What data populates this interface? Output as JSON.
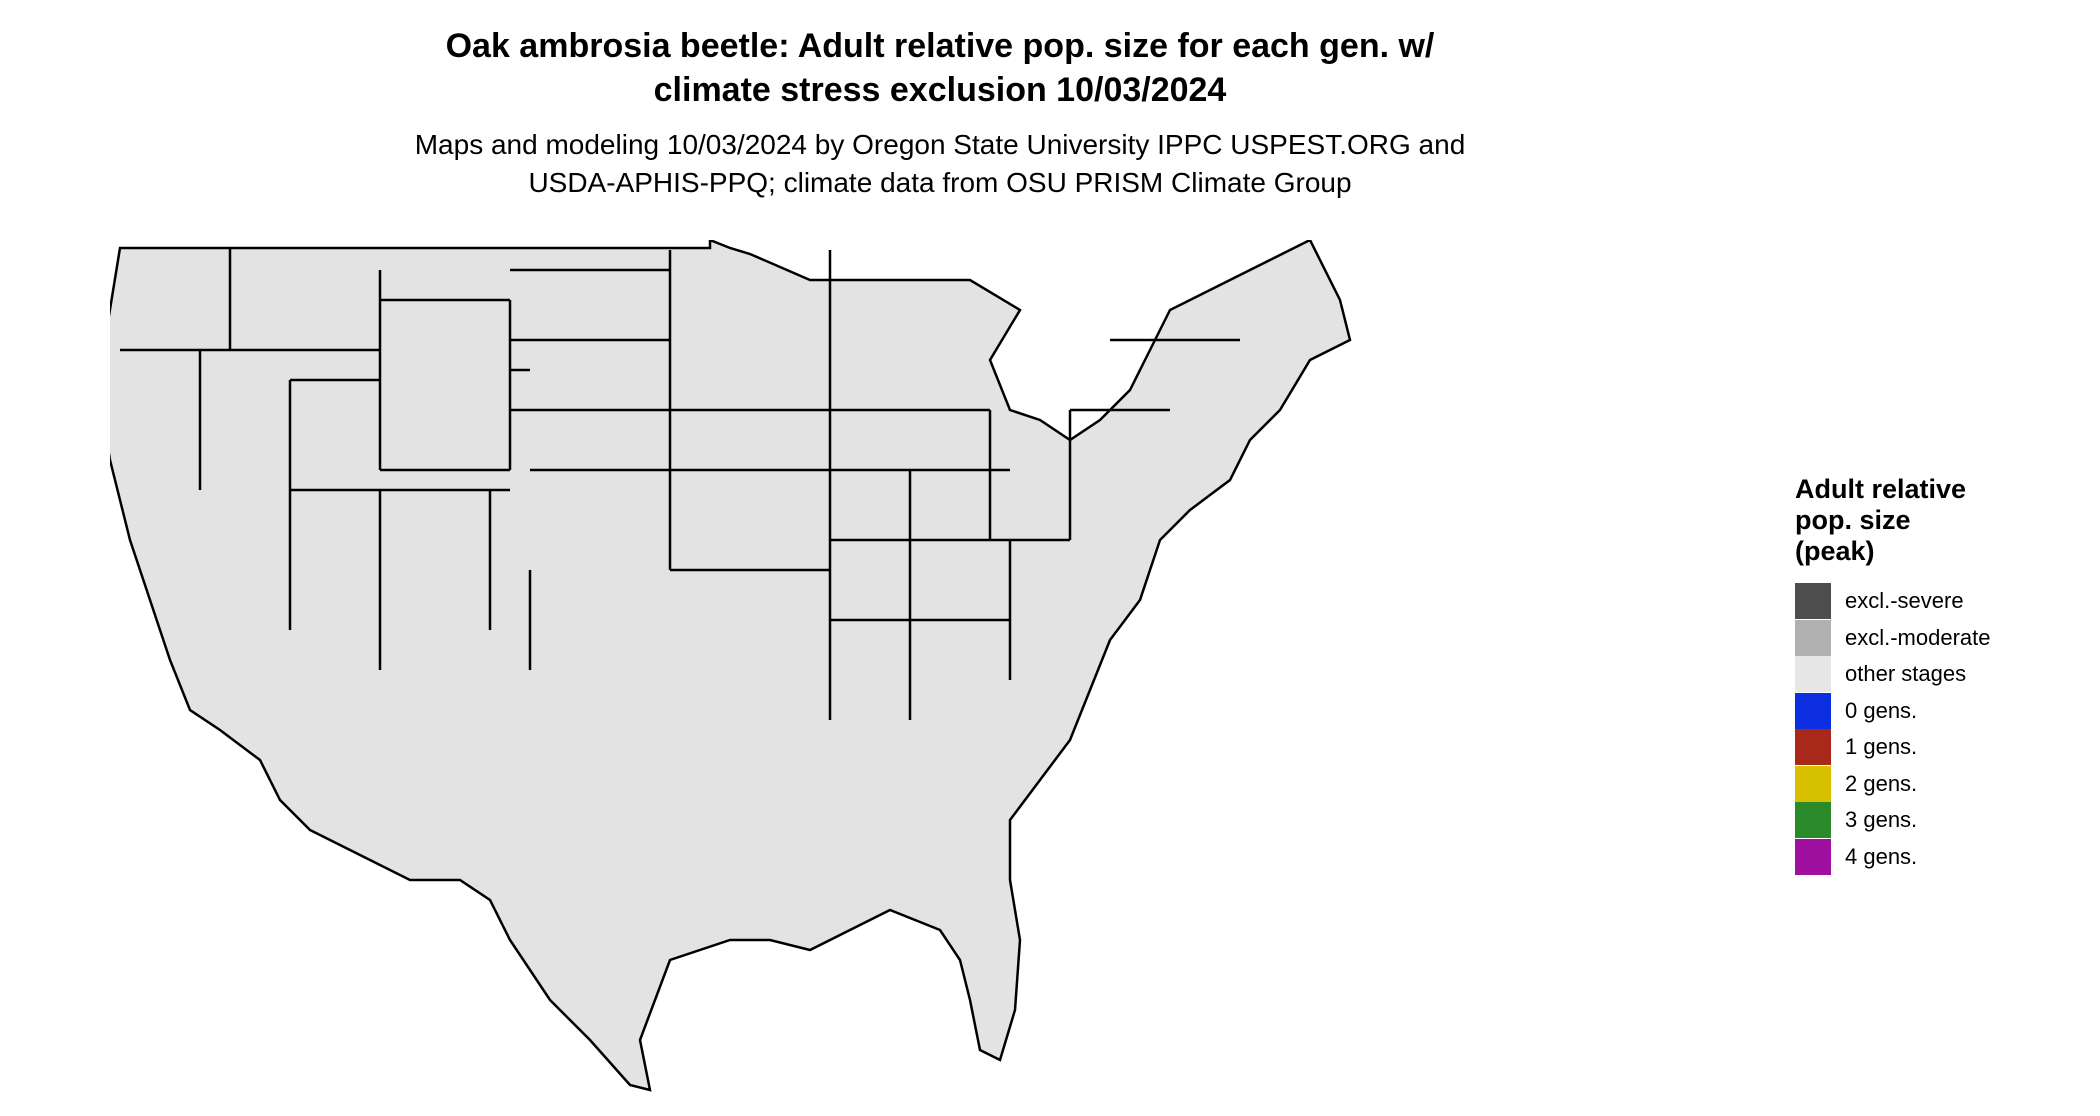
{
  "title": {
    "line1": "Oak ambrosia beetle: Adult relative pop. size for each gen. w/",
    "line2": "climate stress exclusion 10/03/2024"
  },
  "subtitle": {
    "line1": "Maps and modeling 10/03/2024 by Oregon State University IPPC USPEST.ORG and",
    "line2": "USDA-APHIS-PPQ; climate data from OSU PRISM Climate Group"
  },
  "legend": {
    "title_line1": "Adult relative",
    "title_line2": "pop. size",
    "title_line3": "(peak)",
    "items": [
      {
        "label": "excl.-severe",
        "color": "#4d4d4d"
      },
      {
        "label": "excl.-moderate",
        "color": "#b0b0b0"
      },
      {
        "label": "other stages",
        "color": "#e6e6e6"
      },
      {
        "label": "0 gens.",
        "color": "#0a2ee0"
      },
      {
        "label": "1 gens.",
        "color": "#a8281a"
      },
      {
        "label": "2 gens.",
        "color": "#d6c000"
      },
      {
        "label": "3 gens.",
        "color": "#2a8a2a"
      },
      {
        "label": "4 gens.",
        "color": "#a010a0"
      }
    ]
  },
  "map_colors": {
    "background_land": "#e3e3e3",
    "excl_moderate": "#b0b0b0",
    "excl_severe": "#4d4d4d",
    "zero_gen_dark": "#0a2ee0",
    "zero_gen_light": "#1ab0f0",
    "one_gen_dark": "#a8281a",
    "one_gen_bright": "#ff4500",
    "two_gen_dark": "#c8a800",
    "two_gen_bright": "#ffff00",
    "border": "#000000"
  }
}
